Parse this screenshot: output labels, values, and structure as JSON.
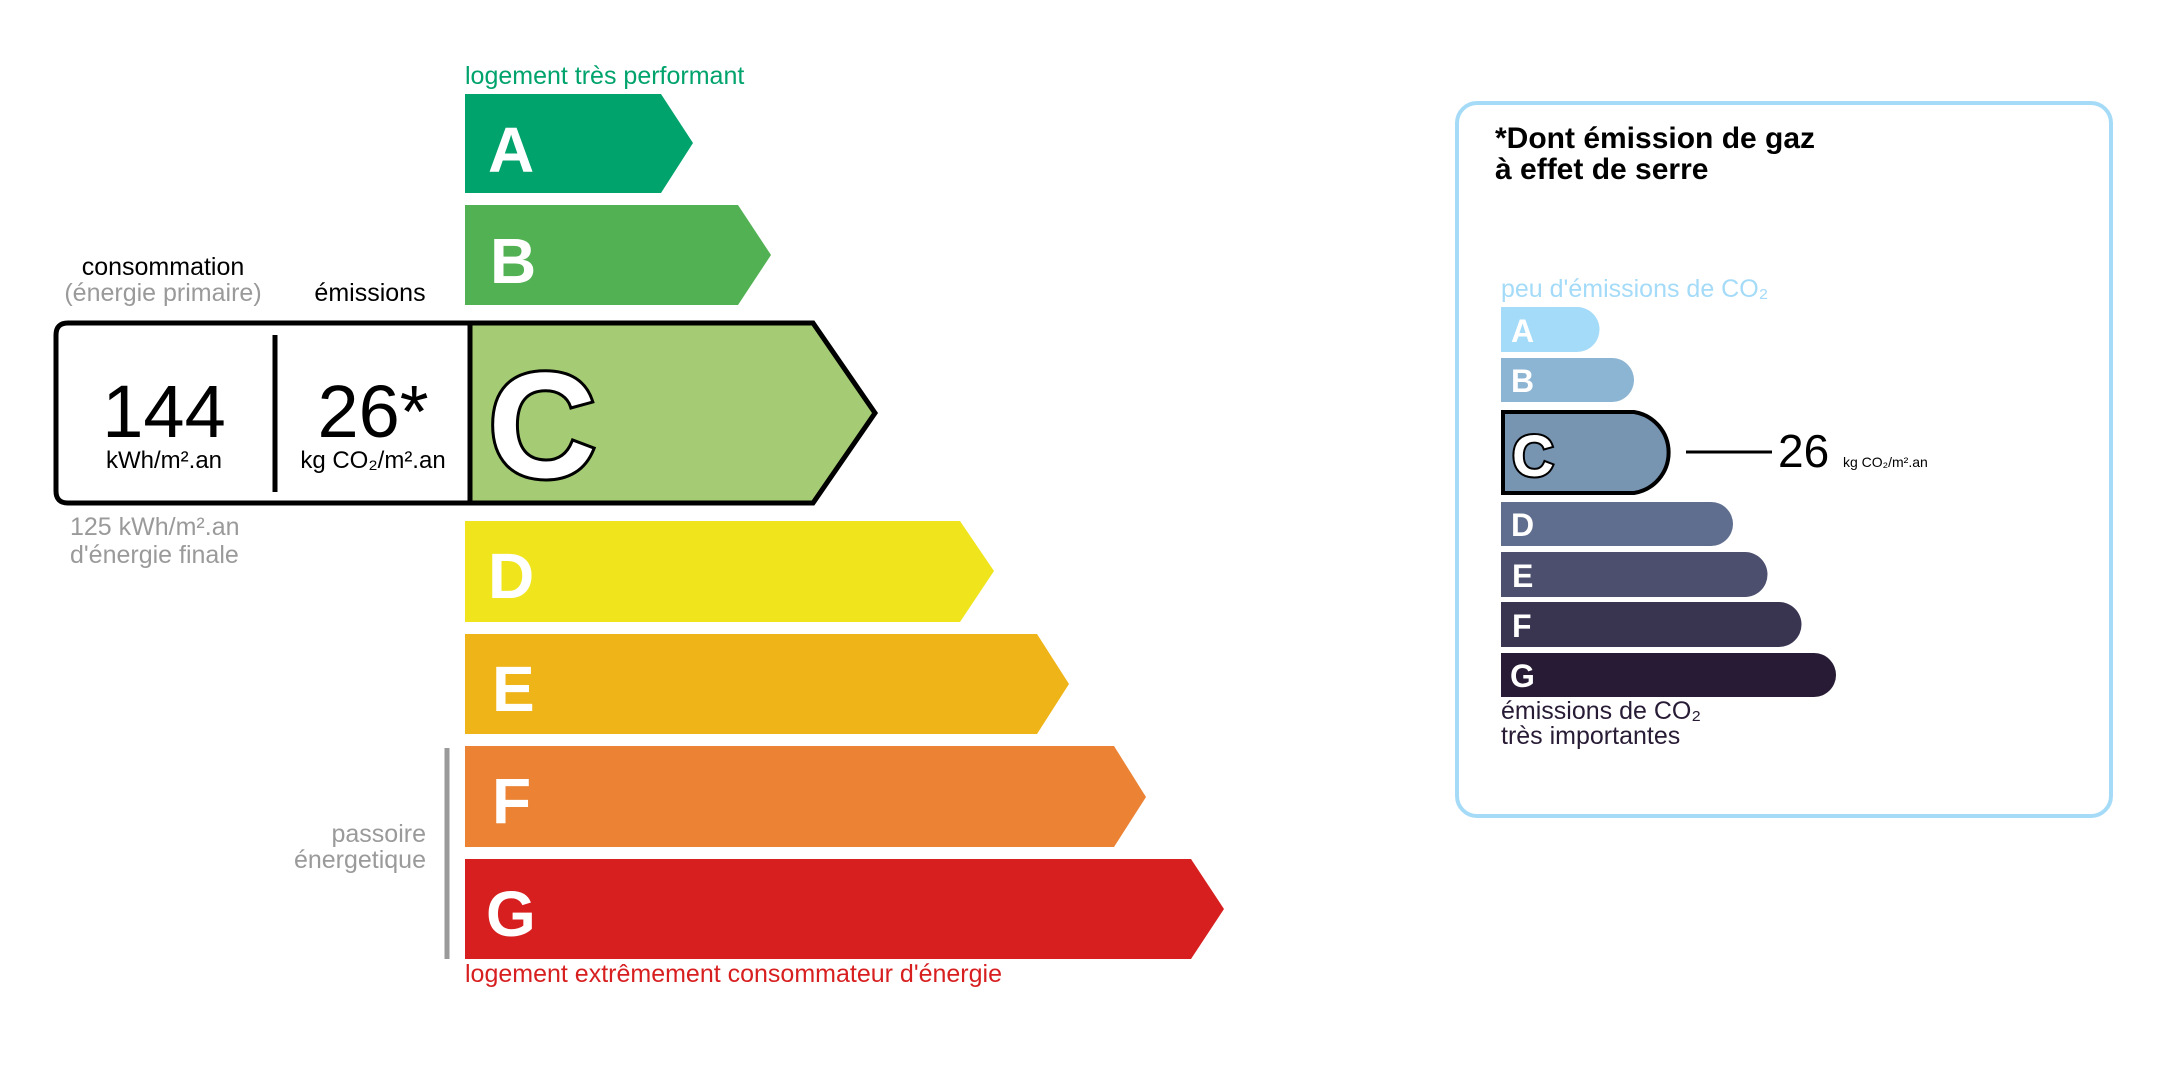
{
  "energy_label": {
    "top_label": "logement très performant",
    "bottom_label": "logement extrêmement consommateur d'énergie",
    "classes": [
      {
        "letter": "A",
        "color": "#00a36c"
      },
      {
        "letter": "B",
        "color": "#52b153"
      },
      {
        "letter": "C",
        "color": "#a5cc74"
      },
      {
        "letter": "D",
        "color": "#f0e51c"
      },
      {
        "letter": "E",
        "color": "#efb418"
      },
      {
        "letter": "F",
        "color": "#eb8234"
      },
      {
        "letter": "G",
        "color": "#d81f20"
      }
    ],
    "current_class": "C",
    "consumption_title": "consommation",
    "consumption_subtitle": "(énergie primaire)",
    "emissions_title": "émissions",
    "consumption_value": "144",
    "consumption_unit": "kWh/m².an",
    "emissions_value": "26*",
    "emissions_unit": "kg CO₂/m².an",
    "final_energy_value": "125 kWh/m².an",
    "final_energy_label": "d'énergie finale",
    "passoire_line1": "passoire",
    "passoire_line2": "énergetique"
  },
  "ghg_panel": {
    "title_line1": "*Dont émission de gaz",
    "title_line2": "à effet de serre",
    "top_label": "peu d'émissions de CO₂",
    "bottom_label_line1": "émissions de CO₂",
    "bottom_label_line2": "très importantes",
    "classes": [
      {
        "letter": "A",
        "color": "#a4dbf8"
      },
      {
        "letter": "B",
        "color": "#8cb4d3"
      },
      {
        "letter": "C",
        "color": "#7794b1"
      },
      {
        "letter": "D",
        "color": "#5f6e8f"
      },
      {
        "letter": "E",
        "color": "#4c4f6d"
      },
      {
        "letter": "F",
        "color": "#393551"
      },
      {
        "letter": "G",
        "color": "#281b35"
      }
    ],
    "current_class": "C",
    "value": "26",
    "unit": "kg CO₂/m².an",
    "border_color": "#a6dbf7"
  }
}
